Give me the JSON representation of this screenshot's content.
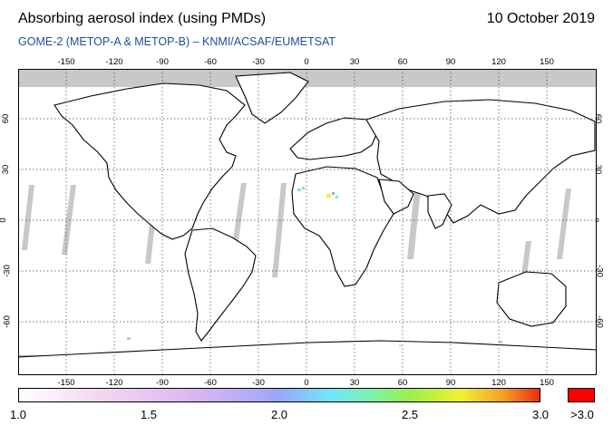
{
  "header": {
    "title": "Absorbing aerosol index (using PMDs)",
    "date": "10 October 2019",
    "subtitle": "GOME-2 (METOP-A & METOP-B)  –  KNMI/ACSAF/EUMETSAT"
  },
  "axes": {
    "lon_ticks": [
      "-150",
      "-120",
      "-90",
      "-60",
      "-30",
      "0",
      "30",
      "60",
      "90",
      "120",
      "150"
    ],
    "lat_ticks": [
      "60",
      "30",
      "0",
      "-30",
      "-60"
    ]
  },
  "colorbar": {
    "labels": [
      "1.0",
      "1.5",
      "2.0",
      "2.5",
      "3.0"
    ],
    "over_label": ">3.0",
    "colors": [
      "#ffffff",
      "#f4d8f0",
      "#d8b4f2",
      "#9aa8f8",
      "#72e6f8",
      "#7ef2a8",
      "#9af04a",
      "#f2f032",
      "#f4a028",
      "#e83010"
    ],
    "over_color": "#ff0000",
    "no_data_color": "#c8c8c8"
  }
}
